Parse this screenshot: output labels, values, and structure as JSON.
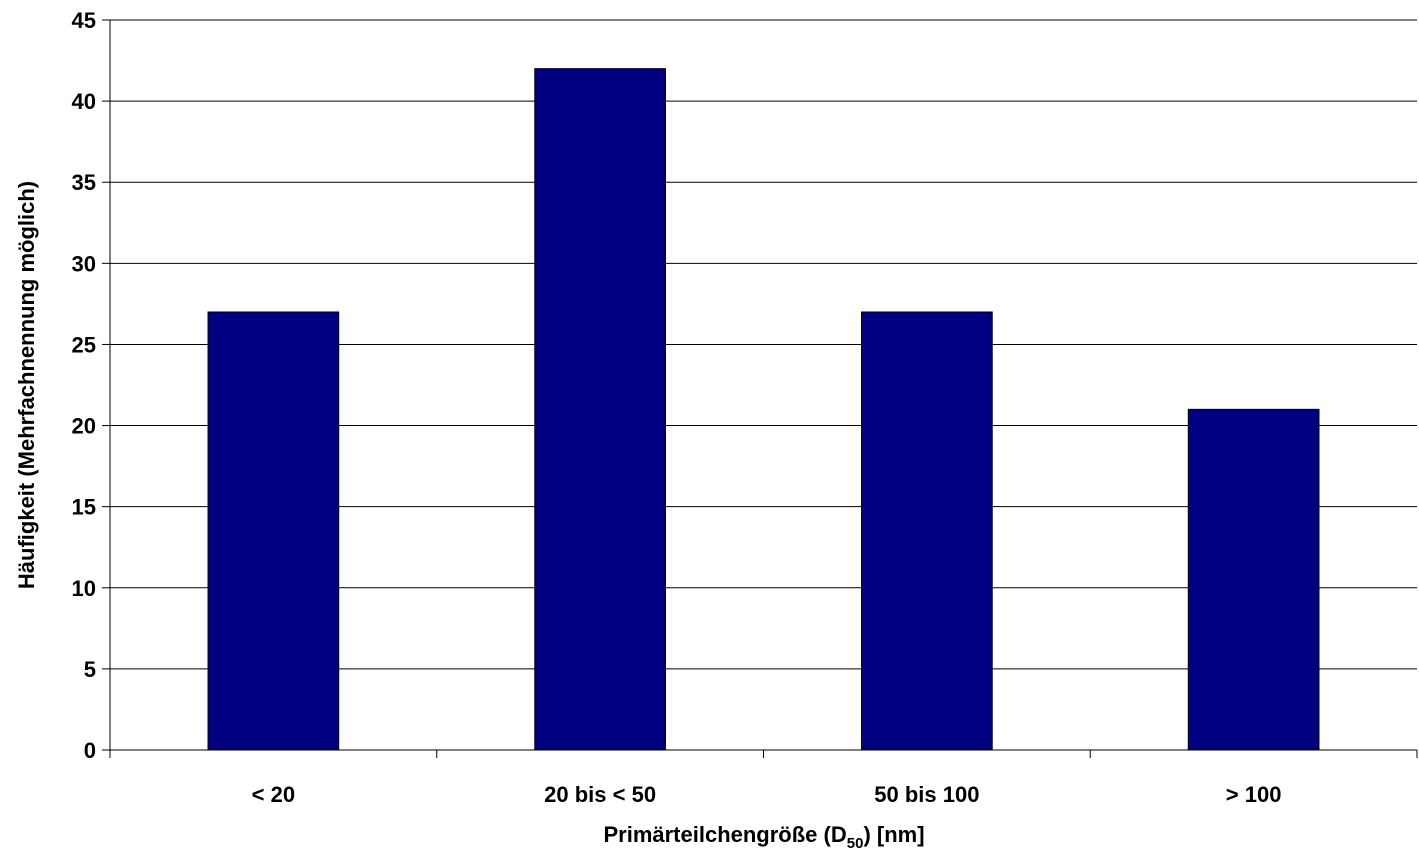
{
  "chart_data": {
    "type": "bar",
    "categories": [
      "< 20",
      "20 bis < 50",
      "50 bis 100",
      "> 100"
    ],
    "values": [
      27,
      42,
      27,
      21
    ],
    "ylabel": "Häufigkeit (Mehrfachnennung möglich)",
    "xlabel": {
      "prefix": "Primärteilchengröße (D",
      "subscript": "50",
      "suffix": ") [nm]"
    },
    "ylim": [
      0,
      45
    ],
    "yticks": [
      0,
      5,
      10,
      15,
      20,
      25,
      30,
      35,
      40,
      45
    ],
    "grid": true,
    "legend": "none",
    "colors": {
      "bar": "#000080",
      "grid": "#000000",
      "axis": "#000000"
    }
  }
}
